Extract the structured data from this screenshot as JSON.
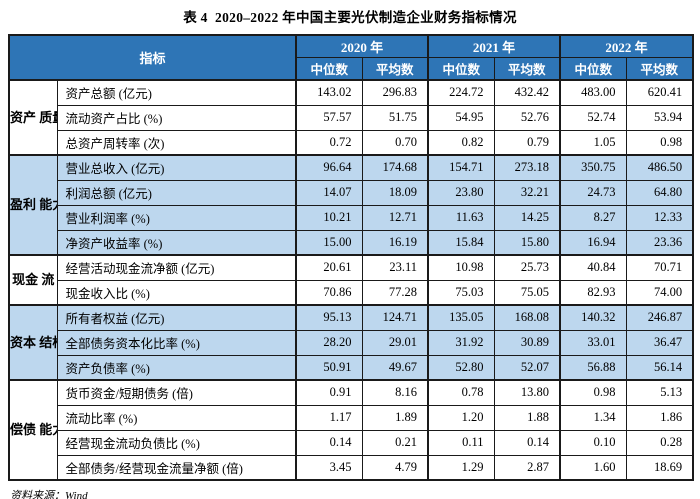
{
  "title": "表 4  2020–2022 年中国主要光伏制造企业财务指标情况",
  "source_label": "资料来源：Wind",
  "colors": {
    "header_bg": "#2E75B6",
    "band_bg": "#BDD7EE",
    "border": "#1a1a1a",
    "header_text": "#FFFFFF"
  },
  "table": {
    "indicator_header": "指标",
    "year_headers": [
      "2020 年",
      "2021 年",
      "2022 年"
    ],
    "sub_headers": [
      "中位数",
      "平均数"
    ],
    "groups": [
      {
        "label": "资产\n质量",
        "shaded": false,
        "rows": [
          {
            "indicator": "资产总额 (亿元)",
            "values": [
              "143.02",
              "296.83",
              "224.72",
              "432.42",
              "483.00",
              "620.41"
            ]
          },
          {
            "indicator": "流动资产占比 (%)",
            "values": [
              "57.57",
              "51.75",
              "54.95",
              "52.76",
              "52.74",
              "53.94"
            ]
          },
          {
            "indicator": "总资产周转率 (次)",
            "values": [
              "0.72",
              "0.70",
              "0.82",
              "0.79",
              "1.05",
              "0.98"
            ]
          }
        ]
      },
      {
        "label": "盈利\n能力",
        "shaded": true,
        "rows": [
          {
            "indicator": "营业总收入 (亿元)",
            "values": [
              "96.64",
              "174.68",
              "154.71",
              "273.18",
              "350.75",
              "486.50"
            ]
          },
          {
            "indicator": "利润总额 (亿元)",
            "values": [
              "14.07",
              "18.09",
              "23.80",
              "32.21",
              "24.73",
              "64.80"
            ]
          },
          {
            "indicator": "营业利润率 (%)",
            "values": [
              "10.21",
              "12.71",
              "11.63",
              "14.25",
              "8.27",
              "12.33"
            ]
          },
          {
            "indicator": "净资产收益率 (%)",
            "values": [
              "15.00",
              "16.19",
              "15.84",
              "15.80",
              "16.94",
              "23.36"
            ]
          }
        ]
      },
      {
        "label": "现金\n流",
        "shaded": false,
        "rows": [
          {
            "indicator": "经营活动现金流净额 (亿元)",
            "values": [
              "20.61",
              "23.11",
              "10.98",
              "25.73",
              "40.84",
              "70.71"
            ]
          },
          {
            "indicator": "现金收入比 (%)",
            "values": [
              "70.86",
              "77.28",
              "75.03",
              "75.05",
              "82.93",
              "74.00"
            ]
          }
        ]
      },
      {
        "label": "资本\n结构",
        "shaded": true,
        "rows": [
          {
            "indicator": "所有者权益 (亿元)",
            "values": [
              "95.13",
              "124.71",
              "135.05",
              "168.08",
              "140.32",
              "246.87"
            ]
          },
          {
            "indicator": "全部债务资本化比率 (%)",
            "values": [
              "28.20",
              "29.01",
              "31.92",
              "30.89",
              "33.01",
              "36.47"
            ]
          },
          {
            "indicator": "资产负债率 (%)",
            "values": [
              "50.91",
              "49.67",
              "52.80",
              "52.07",
              "56.88",
              "56.14"
            ]
          }
        ]
      },
      {
        "label": "偿债\n能力",
        "shaded": false,
        "rows": [
          {
            "indicator": "货币资金/短期债务 (倍)",
            "values": [
              "0.91",
              "8.16",
              "0.78",
              "13.80",
              "0.98",
              "5.13"
            ]
          },
          {
            "indicator": "流动比率 (%)",
            "values": [
              "1.17",
              "1.89",
              "1.20",
              "1.88",
              "1.34",
              "1.86"
            ]
          },
          {
            "indicator": "经营现金流动负债比 (%)",
            "values": [
              "0.14",
              "0.21",
              "0.11",
              "0.14",
              "0.10",
              "0.28"
            ]
          },
          {
            "indicator": "全部债务/经营现金流量净额 (倍)",
            "values": [
              "3.45",
              "4.79",
              "1.29",
              "2.87",
              "1.60",
              "18.69"
            ]
          }
        ]
      }
    ]
  }
}
